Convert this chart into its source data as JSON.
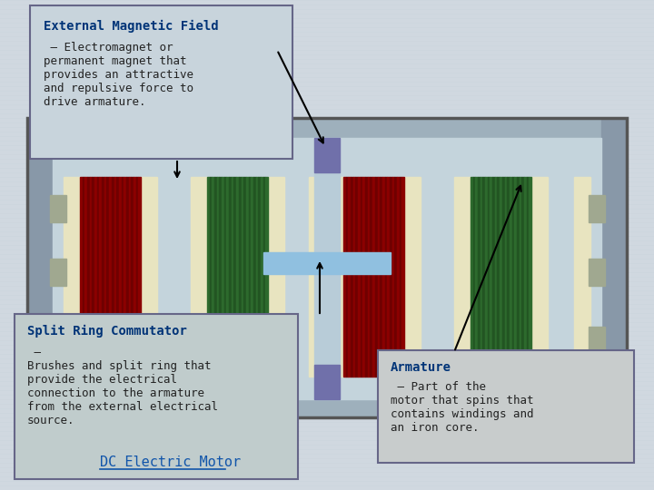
{
  "bg_color": "#d0d8e0",
  "title": "DC Electric Motor",
  "title_color": "#1155aa",
  "label1_title": "External Magnetic Field",
  "label1_body": " – Electromagnet or\npermanent magnet that\nprovides an attractive\nand repulsive force to\ndrive armature.",
  "label2_title": "Split Ring Commutator",
  "label2_body": " –\nBrushes and split ring that\nprovide the electrical\nconnection to the armature\nfrom the external electrical\nsource.",
  "label3_title": "Armature",
  "label3_body": " – Part of the\nmotor that spins that\ncontains windings and\nan iron core.",
  "text_color": "#222222",
  "bold_color": "#003377",
  "box1_bg": "#c8d4dc",
  "box2_bg": "#c0cccc",
  "box3_bg": "#c8cccc",
  "coil_red1": "#8B0000",
  "coil_red2": "#700000",
  "coil_green1": "#2d6a2d",
  "coil_green2": "#225522",
  "sep_color": "#e8e4c0",
  "commutator_color": "#7070aa",
  "axle_color": "#b8ccd8",
  "arm_bar_color": "#90c0e0",
  "frame_fill": "#b8c8d0",
  "frame_top_bot": "#9eb0bc",
  "frame_sides": "#8898a8",
  "interior_color": "#c4d4dc",
  "bracket_color": "#a0a890",
  "arrow_color": "#111111"
}
